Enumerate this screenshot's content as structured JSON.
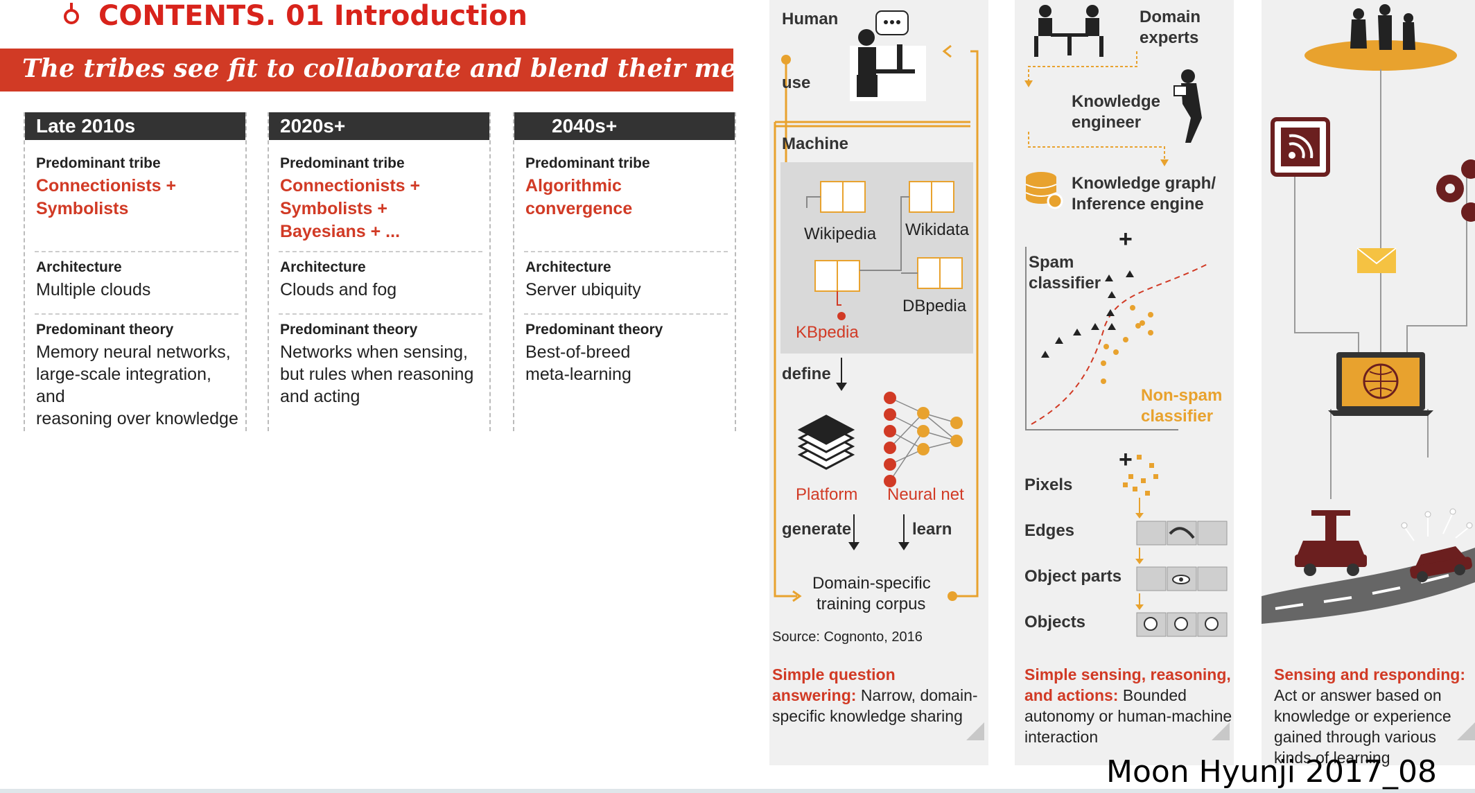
{
  "header": {
    "title": "CONTENTS. 01 Introduction"
  },
  "banner": {
    "text": "The tribes see fit to collaborate and blend their methods"
  },
  "eras": [
    {
      "title": "Late 2010s",
      "tribe_label": "Predominant tribe",
      "tribe": "Connectionists +\nSymbolists",
      "arch_label": "Architecture",
      "arch": "Multiple clouds",
      "theory_label": "Predominant theory",
      "theory": "Memory neural networks,\nlarge-scale integration, and\nreasoning over knowledge"
    },
    {
      "title": "2020s+",
      "tribe_label": "Predominant tribe",
      "tribe": "Connectionists +\nSymbolists +\nBayesians + ...",
      "arch_label": "Architecture",
      "arch": "Clouds and fog",
      "theory_label": "Predominant theory",
      "theory": "Networks when sensing,\nbut rules when reasoning\nand acting"
    },
    {
      "title": "2040s+",
      "tribe_label": "Predominant tribe",
      "tribe": "Algorithmic\nconvergence",
      "arch_label": "Architecture",
      "arch": "Server ubiquity",
      "theory_label": "Predominant theory",
      "theory": "Best-of-breed\nmeta-learning"
    }
  ],
  "panel1": {
    "human": "Human",
    "use": "use",
    "machine": "Machine",
    "wikipedia": "Wikipedia",
    "wikidata": "Wikidata",
    "dbpedia": "DBpedia",
    "kbpedia": "KBpedia",
    "define": "define",
    "platform": "Platform",
    "neural_net": "Neural net",
    "generate": "generate",
    "learn": "learn",
    "corpus_line1": "Domain-specific",
    "corpus_line2": "training corpus",
    "source": "Source: Cognonto, 2016",
    "caption_title": "Simple question answering:",
    "caption_body": "Narrow, domain-specific knowledge sharing"
  },
  "panel2": {
    "domain_experts": "Domain experts",
    "knowledge_engineer": "Knowledge engineer",
    "knowledge_graph": "Knowledge graph/ Inference engine",
    "plus": "+",
    "spam": "Spam classifier",
    "nonspam": "Non-spam classifier",
    "pixels": "Pixels",
    "edges": "Edges",
    "object_parts": "Object parts",
    "objects": "Objects",
    "caption_title": "Simple sensing, reasoning, and actions:",
    "caption_body": " Bounded autonomy or human-machine interaction"
  },
  "panel3": {
    "caption_title": "Sensing and responding:",
    "caption_body": "Act or answer based on knowledge or experience gained through various kinds of learning"
  },
  "credit": "Moon Hyunji 2017_08",
  "colors": {
    "accent_red": "#d13a25",
    "orange": "#e8a22e",
    "dark_header": "#333333",
    "panel_bg": "#f0f0f0"
  }
}
